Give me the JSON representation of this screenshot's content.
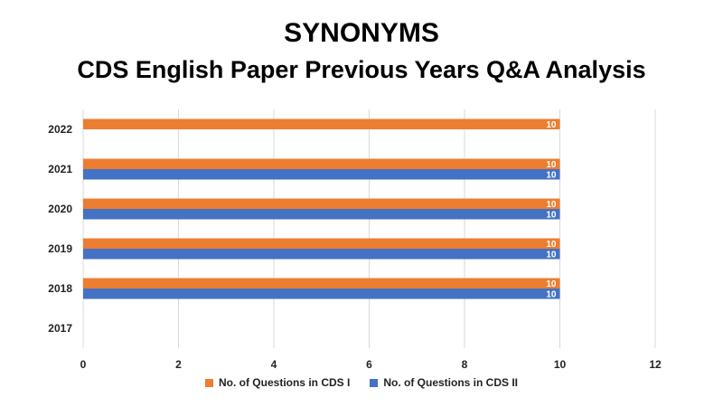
{
  "chart_data": {
    "type": "bar",
    "orientation": "horizontal",
    "title": "SYNONYMS",
    "subtitle": "CDS English Paper Previous Years Q&A Analysis",
    "categories": [
      "2022",
      "2021",
      "2020",
      "2019",
      "2018",
      "2017"
    ],
    "series": [
      {
        "name": "No. of Questions in CDS I",
        "color": "#ED7D31",
        "values": [
          10,
          10,
          10,
          10,
          10,
          null
        ]
      },
      {
        "name": "No. of Questions in CDS II",
        "color": "#4472C4",
        "values": [
          null,
          10,
          10,
          10,
          10,
          null
        ]
      }
    ],
    "xlim": [
      0,
      12
    ],
    "xticks": [
      0,
      2,
      4,
      6,
      8,
      10,
      12
    ],
    "grid": true,
    "data_labels": true,
    "legend_position": "bottom"
  }
}
